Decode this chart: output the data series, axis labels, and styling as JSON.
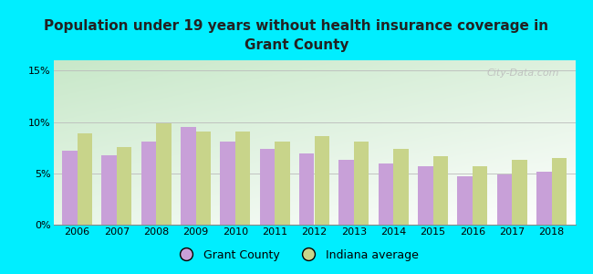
{
  "title": "Population under 19 years without health insurance coverage in\nGrant County",
  "years": [
    2006,
    2007,
    2008,
    2009,
    2010,
    2011,
    2012,
    2013,
    2014,
    2015,
    2016,
    2017,
    2018
  ],
  "grant_county": [
    7.2,
    6.8,
    8.1,
    9.5,
    8.1,
    7.4,
    6.9,
    6.3,
    6.0,
    5.7,
    4.7,
    4.9,
    5.2
  ],
  "indiana_avg": [
    8.9,
    7.6,
    9.9,
    9.1,
    9.1,
    8.1,
    8.6,
    8.1,
    7.4,
    6.7,
    5.7,
    6.3,
    6.5
  ],
  "grant_color": "#c8a0d8",
  "indiana_color": "#c8d48a",
  "bg_outer": "#00eeff",
  "ylim": [
    0,
    16
  ],
  "yticks": [
    0,
    5,
    10,
    15
  ],
  "ytick_labels": [
    "0%",
    "5%",
    "10%",
    "15%"
  ],
  "watermark": "City-Data.com",
  "legend_grant": "Grant County",
  "legend_indiana": "Indiana average",
  "title_fontsize": 11,
  "bar_width": 0.38
}
